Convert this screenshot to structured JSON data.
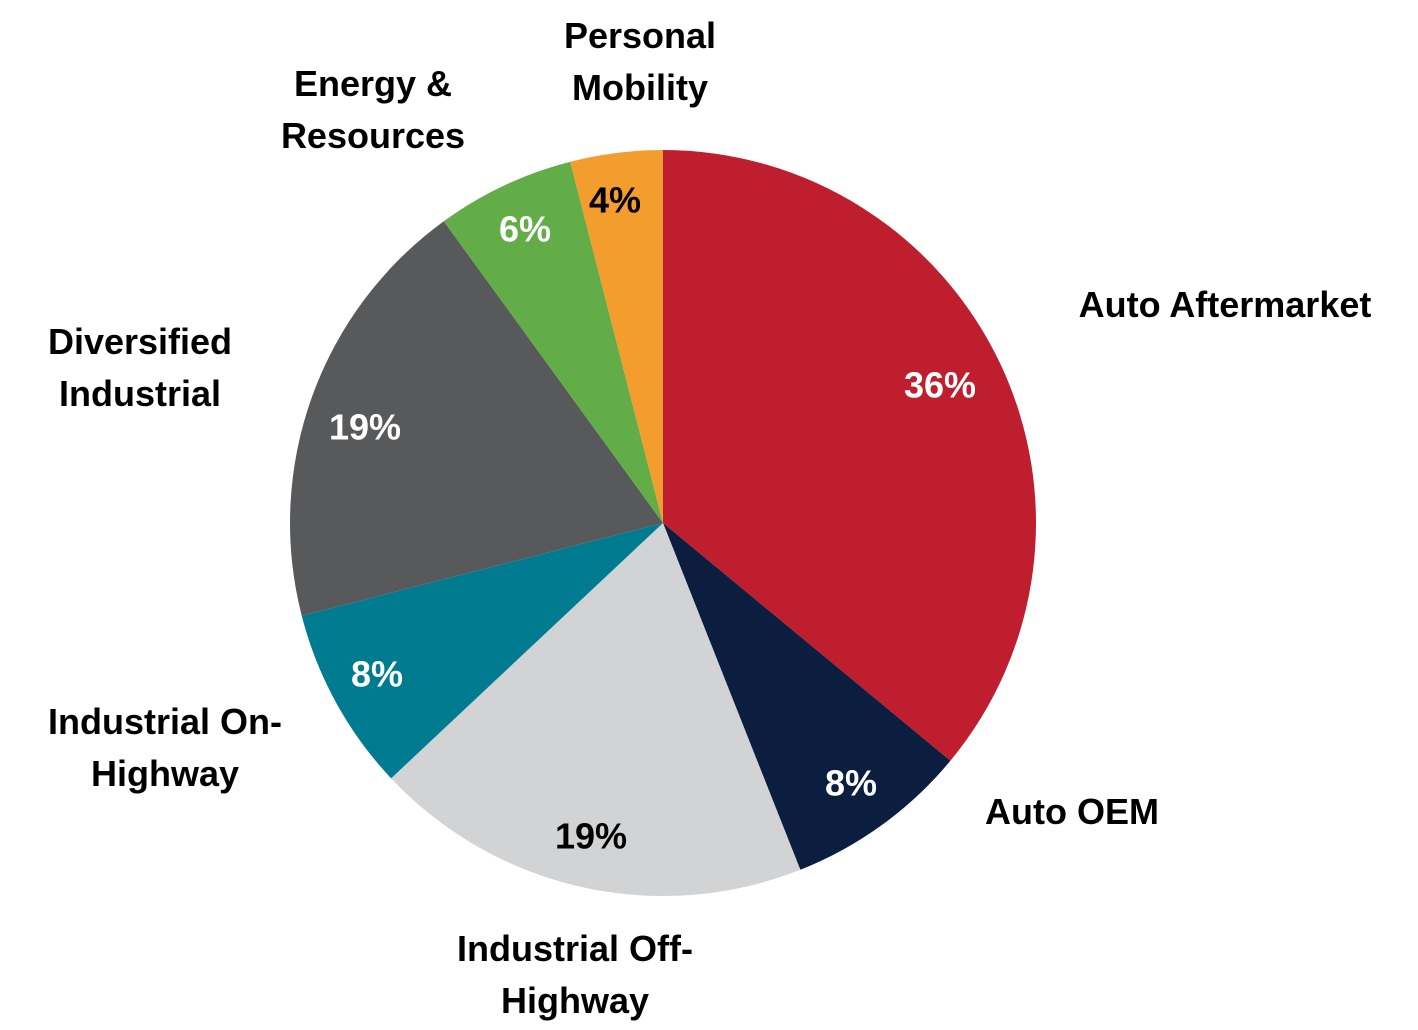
{
  "chart_data": {
    "type": "pie",
    "categories": [
      "Auto Aftermarket",
      "Auto OEM",
      "Industrial Off-Highway",
      "Industrial On-Highway",
      "Diversified Industrial",
      "Energy & Resources",
      "Personal Mobility"
    ],
    "values": [
      36,
      8,
      19,
      8,
      19,
      6,
      4
    ],
    "value_labels": [
      "36%",
      "8%",
      "19%",
      "8%",
      "19%",
      "6%",
      "4%"
    ],
    "colors": [
      "#be1e2d",
      "#0b1e3f",
      "#d1d3d4",
      "#007b8f",
      "#58595b",
      "#62ad47",
      "#f49d2f"
    ]
  }
}
